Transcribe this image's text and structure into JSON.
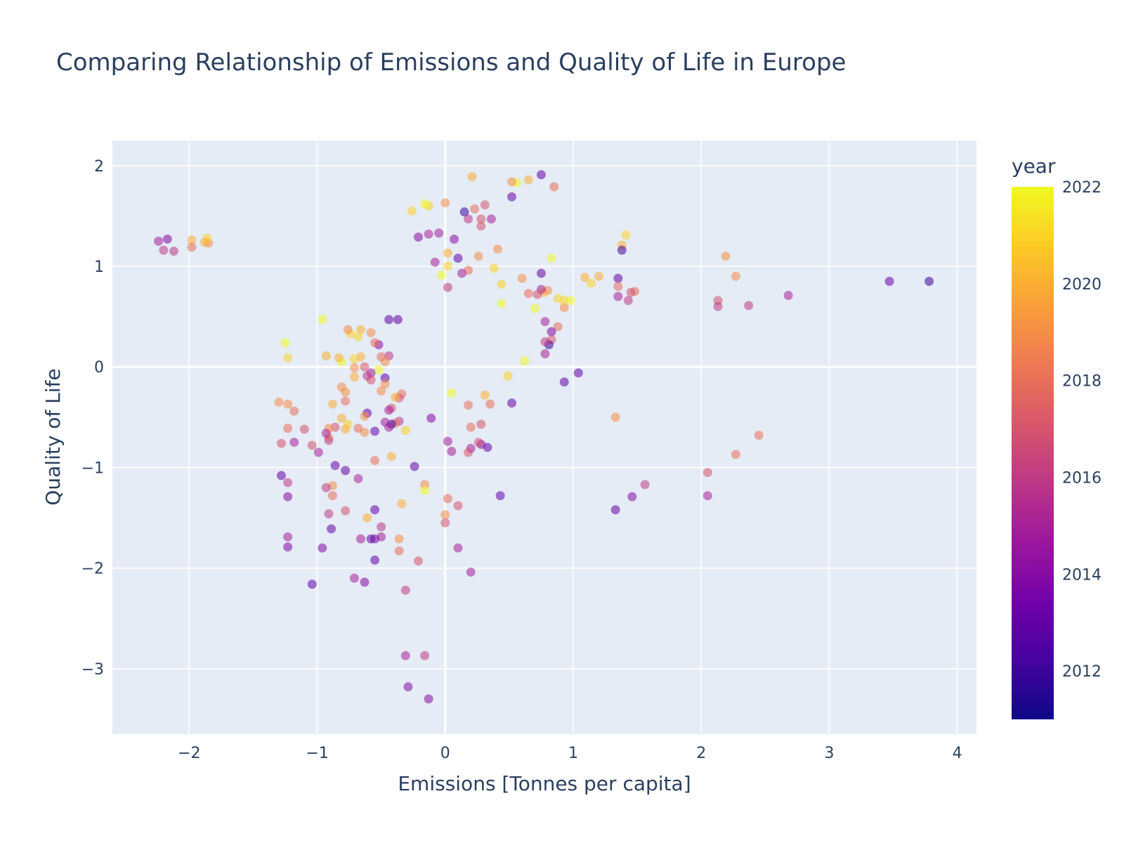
{
  "chart_data": {
    "type": "scatter",
    "title": "Comparing Relationship of Emissions and Quality of Life in Europe",
    "xlabel": "Emissions [Tonnes per capita]",
    "ylabel": "Quality of Life",
    "xlim": [
      -2.6,
      4.15
    ],
    "ylim": [
      -3.65,
      2.25
    ],
    "x_ticks": [
      -2,
      -1,
      0,
      1,
      2,
      3,
      4
    ],
    "y_ticks": [
      -3,
      -2,
      -1,
      0,
      1,
      2
    ],
    "x_tick_labels": [
      "−2",
      "−1",
      "0",
      "1",
      "2",
      "3",
      "4"
    ],
    "y_tick_labels": [
      "−3",
      "−2",
      "−1",
      "0",
      "1",
      "2"
    ],
    "grid": true,
    "plot_background": "#e5ecf6",
    "marker_opacity": 0.55,
    "colorscale": "Plasma",
    "colorscale_colors": [
      "#0d0887",
      "#46039f",
      "#7201a8",
      "#9c179e",
      "#bd3786",
      "#d8576b",
      "#ed7953",
      "#fb9f3a",
      "#fdca26",
      "#f0f921"
    ],
    "colorbar": {
      "title": "year",
      "range": [
        2011,
        2022
      ],
      "ticks": [
        2012,
        2014,
        2016,
        2018,
        2020,
        2022
      ],
      "tick_labels": [
        "2012",
        "2014",
        "2016",
        "2018",
        "2020",
        "2022"
      ]
    },
    "points": [
      {
        "x": 3.78,
        "y": 0.85,
        "year": 2012
      },
      {
        "x": 3.47,
        "y": 0.85,
        "year": 2013
      },
      {
        "x": 2.68,
        "y": 0.71,
        "year": 2015
      },
      {
        "x": 2.45,
        "y": -0.68,
        "year": 2018
      },
      {
        "x": 2.37,
        "y": 0.61,
        "year": 2016
      },
      {
        "x": 2.27,
        "y": 0.9,
        "year": 2019
      },
      {
        "x": 2.27,
        "y": -0.87,
        "year": 2018
      },
      {
        "x": 2.19,
        "y": 1.1,
        "year": 2019
      },
      {
        "x": 2.13,
        "y": 0.66,
        "year": 2017
      },
      {
        "x": 2.13,
        "y": 0.6,
        "year": 2016
      },
      {
        "x": 2.05,
        "y": -1.05,
        "year": 2017
      },
      {
        "x": 2.05,
        "y": -1.28,
        "year": 2015
      },
      {
        "x": 1.56,
        "y": -1.17,
        "year": 2016
      },
      {
        "x": 1.48,
        "y": 0.75,
        "year": 2018
      },
      {
        "x": 1.45,
        "y": 0.74,
        "year": 2017
      },
      {
        "x": 1.46,
        "y": -1.29,
        "year": 2014
      },
      {
        "x": 1.43,
        "y": 0.66,
        "year": 2016
      },
      {
        "x": 1.41,
        "y": 1.31,
        "year": 2021
      },
      {
        "x": 1.38,
        "y": 1.21,
        "year": 2020
      },
      {
        "x": 1.38,
        "y": 1.16,
        "year": 2012
      },
      {
        "x": 1.35,
        "y": 0.88,
        "year": 2013
      },
      {
        "x": 1.35,
        "y": 0.8,
        "year": 2018
      },
      {
        "x": 1.35,
        "y": 0.7,
        "year": 2015
      },
      {
        "x": 1.33,
        "y": -0.5,
        "year": 2019
      },
      {
        "x": 1.33,
        "y": -1.42,
        "year": 2013
      },
      {
        "x": 1.2,
        "y": 0.9,
        "year": 2020
      },
      {
        "x": 1.14,
        "y": 0.83,
        "year": 2021
      },
      {
        "x": 1.09,
        "y": 0.89,
        "year": 2020
      },
      {
        "x": 1.04,
        "y": -0.06,
        "year": 2013
      },
      {
        "x": 0.98,
        "y": 0.66,
        "year": 2022
      },
      {
        "x": 0.93,
        "y": 0.59,
        "year": 2019
      },
      {
        "x": 0.93,
        "y": 0.66,
        "year": 2021
      },
      {
        "x": 0.93,
        "y": -0.15,
        "year": 2013
      },
      {
        "x": 0.88,
        "y": 0.68,
        "year": 2021
      },
      {
        "x": 0.88,
        "y": 0.4,
        "year": 2018
      },
      {
        "x": 0.85,
        "y": 1.79,
        "year": 2018
      },
      {
        "x": 0.83,
        "y": 1.08,
        "year": 2022
      },
      {
        "x": 0.83,
        "y": 0.35,
        "year": 2014
      },
      {
        "x": 0.83,
        "y": 0.27,
        "year": 2017
      },
      {
        "x": 0.81,
        "y": 0.22,
        "year": 2012
      },
      {
        "x": 0.8,
        "y": 0.76,
        "year": 2019
      },
      {
        "x": 0.78,
        "y": 0.45,
        "year": 2015
      },
      {
        "x": 0.78,
        "y": 0.25,
        "year": 2016
      },
      {
        "x": 0.78,
        "y": 0.13,
        "year": 2015
      },
      {
        "x": 0.77,
        "y": 0.74,
        "year": 2020
      },
      {
        "x": 0.75,
        "y": 1.91,
        "year": 2013
      },
      {
        "x": 0.75,
        "y": 0.93,
        "year": 2013
      },
      {
        "x": 0.75,
        "y": 0.77,
        "year": 2015
      },
      {
        "x": 0.72,
        "y": 0.72,
        "year": 2017
      },
      {
        "x": 0.7,
        "y": 0.58,
        "year": 2022
      },
      {
        "x": 0.65,
        "y": 1.86,
        "year": 2020
      },
      {
        "x": 0.65,
        "y": 0.73,
        "year": 2018
      },
      {
        "x": 0.62,
        "y": 0.06,
        "year": 2022
      },
      {
        "x": 0.6,
        "y": 0.88,
        "year": 2019
      },
      {
        "x": 0.56,
        "y": 1.83,
        "year": 2022
      },
      {
        "x": 0.52,
        "y": 1.84,
        "year": 2019
      },
      {
        "x": 0.52,
        "y": 1.69,
        "year": 2013
      },
      {
        "x": 0.52,
        "y": -0.36,
        "year": 2013
      },
      {
        "x": 0.49,
        "y": -0.09,
        "year": 2021
      },
      {
        "x": 0.44,
        "y": 0.82,
        "year": 2021
      },
      {
        "x": 0.44,
        "y": 0.63,
        "year": 2022
      },
      {
        "x": 0.43,
        "y": -1.28,
        "year": 2013
      },
      {
        "x": 0.41,
        "y": 1.17,
        "year": 2019
      },
      {
        "x": 0.38,
        "y": 0.98,
        "year": 2021
      },
      {
        "x": 0.36,
        "y": 1.47,
        "year": 2015
      },
      {
        "x": 0.35,
        "y": -0.37,
        "year": 2018
      },
      {
        "x": 0.33,
        "y": -0.8,
        "year": 2013
      },
      {
        "x": 0.31,
        "y": 1.61,
        "year": 2017
      },
      {
        "x": 0.31,
        "y": -0.28,
        "year": 2020
      },
      {
        "x": 0.28,
        "y": 1.47,
        "year": 2017
      },
      {
        "x": 0.28,
        "y": 1.4,
        "year": 2017
      },
      {
        "x": 0.28,
        "y": -0.57,
        "year": 2017
      },
      {
        "x": 0.28,
        "y": -0.77,
        "year": 2014
      },
      {
        "x": 0.26,
        "y": 1.1,
        "year": 2019
      },
      {
        "x": 0.26,
        "y": -0.75,
        "year": 2017
      },
      {
        "x": 0.23,
        "y": 1.57,
        "year": 2018
      },
      {
        "x": 0.21,
        "y": 1.89,
        "year": 2020
      },
      {
        "x": 0.2,
        "y": -0.6,
        "year": 2018
      },
      {
        "x": 0.2,
        "y": -0.81,
        "year": 2015
      },
      {
        "x": 0.2,
        "y": -2.04,
        "year": 2015
      },
      {
        "x": 0.18,
        "y": 1.47,
        "year": 2016
      },
      {
        "x": 0.18,
        "y": 0.96,
        "year": 2018
      },
      {
        "x": 0.18,
        "y": -0.38,
        "year": 2018
      },
      {
        "x": 0.18,
        "y": -0.85,
        "year": 2017
      },
      {
        "x": 0.15,
        "y": 1.54,
        "year": 2012
      },
      {
        "x": 0.13,
        "y": 0.93,
        "year": 2015
      },
      {
        "x": 0.1,
        "y": 1.08,
        "year": 2013
      },
      {
        "x": 0.1,
        "y": -1.38,
        "year": 2017
      },
      {
        "x": 0.1,
        "y": -1.8,
        "year": 2015
      },
      {
        "x": 0.07,
        "y": 1.27,
        "year": 2014
      },
      {
        "x": 0.05,
        "y": -0.26,
        "year": 2022
      },
      {
        "x": 0.05,
        "y": -0.84,
        "year": 2015
      },
      {
        "x": 0.02,
        "y": 1.13,
        "year": 2020
      },
      {
        "x": 0.02,
        "y": 1.0,
        "year": 2021
      },
      {
        "x": 0.02,
        "y": 0.79,
        "year": 2016
      },
      {
        "x": 0.02,
        "y": -0.74,
        "year": 2015
      },
      {
        "x": 0.02,
        "y": -1.31,
        "year": 2018
      },
      {
        "x": 0.0,
        "y": 1.63,
        "year": 2019
      },
      {
        "x": 0.0,
        "y": -1.47,
        "year": 2019
      },
      {
        "x": 0.0,
        "y": -1.55,
        "year": 2017
      },
      {
        "x": -0.03,
        "y": 0.91,
        "year": 2022
      },
      {
        "x": -0.05,
        "y": 1.33,
        "year": 2015
      },
      {
        "x": -0.08,
        "y": 1.04,
        "year": 2015
      },
      {
        "x": -0.11,
        "y": -0.51,
        "year": 2014
      },
      {
        "x": -0.13,
        "y": 1.6,
        "year": 2021
      },
      {
        "x": -0.13,
        "y": 1.32,
        "year": 2015
      },
      {
        "x": -0.13,
        "y": -3.3,
        "year": 2014
      },
      {
        "x": -0.16,
        "y": 1.62,
        "year": 2022
      },
      {
        "x": -0.16,
        "y": -1.17,
        "year": 2019
      },
      {
        "x": -0.16,
        "y": -1.23,
        "year": 2022
      },
      {
        "x": -0.16,
        "y": -2.87,
        "year": 2016
      },
      {
        "x": -0.21,
        "y": 1.29,
        "year": 2014
      },
      {
        "x": -0.21,
        "y": -1.93,
        "year": 2017
      },
      {
        "x": -0.24,
        "y": -0.99,
        "year": 2013
      },
      {
        "x": -0.26,
        "y": 1.55,
        "year": 2021
      },
      {
        "x": -0.29,
        "y": -3.18,
        "year": 2014
      },
      {
        "x": -0.31,
        "y": -0.63,
        "year": 2021
      },
      {
        "x": -0.31,
        "y": -2.22,
        "year": 2016
      },
      {
        "x": -0.31,
        "y": -2.87,
        "year": 2015
      },
      {
        "x": -0.34,
        "y": -0.27,
        "year": 2018
      },
      {
        "x": -0.34,
        "y": -1.36,
        "year": 2020
      },
      {
        "x": -0.36,
        "y": -0.31,
        "year": 2017
      },
      {
        "x": -0.36,
        "y": -0.54,
        "year": 2016
      },
      {
        "x": -0.36,
        "y": -1.71,
        "year": 2019
      },
      {
        "x": -0.36,
        "y": -1.83,
        "year": 2018
      },
      {
        "x": -0.37,
        "y": 0.47,
        "year": 2013
      },
      {
        "x": -0.39,
        "y": -0.3,
        "year": 2020
      },
      {
        "x": -0.39,
        "y": -0.56,
        "year": 2018
      },
      {
        "x": -0.42,
        "y": -0.41,
        "year": 2017
      },
      {
        "x": -0.42,
        "y": -0.57,
        "year": 2012
      },
      {
        "x": -0.42,
        "y": -0.89,
        "year": 2020
      },
      {
        "x": -0.44,
        "y": 0.47,
        "year": 2013
      },
      {
        "x": -0.44,
        "y": 0.11,
        "year": 2016
      },
      {
        "x": -0.44,
        "y": -0.43,
        "year": 2015
      },
      {
        "x": -0.44,
        "y": -0.6,
        "year": 2015
      },
      {
        "x": -0.47,
        "y": 0.05,
        "year": 2019
      },
      {
        "x": -0.47,
        "y": -0.11,
        "year": 2013
      },
      {
        "x": -0.47,
        "y": -0.17,
        "year": 2019
      },
      {
        "x": -0.47,
        "y": -0.55,
        "year": 2015
      },
      {
        "x": -0.5,
        "y": 0.1,
        "year": 2018
      },
      {
        "x": -0.5,
        "y": -0.24,
        "year": 2019
      },
      {
        "x": -0.5,
        "y": -1.59,
        "year": 2016
      },
      {
        "x": -0.5,
        "y": -1.69,
        "year": 2015
      },
      {
        "x": -0.52,
        "y": 0.22,
        "year": 2014
      },
      {
        "x": -0.52,
        "y": -0.03,
        "year": 2022
      },
      {
        "x": -0.55,
        "y": 0.24,
        "year": 2018
      },
      {
        "x": -0.55,
        "y": -0.64,
        "year": 2013
      },
      {
        "x": -0.55,
        "y": -0.93,
        "year": 2018
      },
      {
        "x": -0.55,
        "y": -1.42,
        "year": 2013
      },
      {
        "x": -0.55,
        "y": -1.71,
        "year": 2014
      },
      {
        "x": -0.55,
        "y": -1.92,
        "year": 2013
      },
      {
        "x": -0.58,
        "y": 0.34,
        "year": 2019
      },
      {
        "x": -0.58,
        "y": -0.06,
        "year": 2015
      },
      {
        "x": -0.58,
        "y": -0.13,
        "year": 2017
      },
      {
        "x": -0.58,
        "y": -1.71,
        "year": 2013
      },
      {
        "x": -0.61,
        "y": -0.09,
        "year": 2016
      },
      {
        "x": -0.61,
        "y": -0.46,
        "year": 2013
      },
      {
        "x": -0.61,
        "y": -1.5,
        "year": 2020
      },
      {
        "x": -0.63,
        "y": 0.0,
        "year": 2017
      },
      {
        "x": -0.63,
        "y": -0.49,
        "year": 2019
      },
      {
        "x": -0.63,
        "y": -0.65,
        "year": 2019
      },
      {
        "x": -0.63,
        "y": -2.14,
        "year": 2014
      },
      {
        "x": -0.66,
        "y": 0.37,
        "year": 2020
      },
      {
        "x": -0.66,
        "y": 0.1,
        "year": 2020
      },
      {
        "x": -0.66,
        "y": -1.71,
        "year": 2015
      },
      {
        "x": -0.68,
        "y": 0.3,
        "year": 2021
      },
      {
        "x": -0.68,
        "y": -0.61,
        "year": 2018
      },
      {
        "x": -0.68,
        "y": -1.11,
        "year": 2015
      },
      {
        "x": -0.71,
        "y": 0.08,
        "year": 2021
      },
      {
        "x": -0.71,
        "y": -0.01,
        "year": 2019
      },
      {
        "x": -0.71,
        "y": -0.1,
        "year": 2020
      },
      {
        "x": -0.71,
        "y": -2.1,
        "year": 2015
      },
      {
        "x": -0.74,
        "y": 0.33,
        "year": 2021
      },
      {
        "x": -0.76,
        "y": 0.37,
        "year": 2019
      },
      {
        "x": -0.76,
        "y": -0.57,
        "year": 2021
      },
      {
        "x": -0.78,
        "y": -0.25,
        "year": 2019
      },
      {
        "x": -0.78,
        "y": -0.34,
        "year": 2018
      },
      {
        "x": -0.78,
        "y": -0.62,
        "year": 2020
      },
      {
        "x": -0.78,
        "y": -1.03,
        "year": 2013
      },
      {
        "x": -0.78,
        "y": -1.43,
        "year": 2017
      },
      {
        "x": -0.81,
        "y": 0.05,
        "year": 2022
      },
      {
        "x": -0.81,
        "y": -0.2,
        "year": 2019
      },
      {
        "x": -0.81,
        "y": -0.51,
        "year": 2020
      },
      {
        "x": -0.83,
        "y": 0.09,
        "year": 2020
      },
      {
        "x": -0.86,
        "y": -0.6,
        "year": 2017
      },
      {
        "x": -0.86,
        "y": -0.98,
        "year": 2013
      },
      {
        "x": -0.88,
        "y": -0.37,
        "year": 2020
      },
      {
        "x": -0.88,
        "y": -1.18,
        "year": 2019
      },
      {
        "x": -0.88,
        "y": -1.28,
        "year": 2018
      },
      {
        "x": -0.89,
        "y": -1.61,
        "year": 2013
      },
      {
        "x": -0.91,
        "y": -0.61,
        "year": 2019
      },
      {
        "x": -0.91,
        "y": -0.7,
        "year": 2019
      },
      {
        "x": -0.91,
        "y": -0.73,
        "year": 2016
      },
      {
        "x": -0.91,
        "y": -1.46,
        "year": 2016
      },
      {
        "x": -0.93,
        "y": 0.11,
        "year": 2020
      },
      {
        "x": -0.93,
        "y": -0.66,
        "year": 2015
      },
      {
        "x": -0.93,
        "y": -1.2,
        "year": 2016
      },
      {
        "x": -0.96,
        "y": 0.47,
        "year": 2022
      },
      {
        "x": -0.96,
        "y": -1.8,
        "year": 2014
      },
      {
        "x": -0.99,
        "y": -0.85,
        "year": 2015
      },
      {
        "x": -1.04,
        "y": -0.78,
        "year": 2017
      },
      {
        "x": -1.04,
        "y": -2.16,
        "year": 2013
      },
      {
        "x": -1.1,
        "y": -0.62,
        "year": 2017
      },
      {
        "x": -1.18,
        "y": -0.44,
        "year": 2018
      },
      {
        "x": -1.18,
        "y": -0.75,
        "year": 2015
      },
      {
        "x": -1.23,
        "y": 0.09,
        "year": 2021
      },
      {
        "x": -1.23,
        "y": -0.37,
        "year": 2019
      },
      {
        "x": -1.23,
        "y": -0.61,
        "year": 2018
      },
      {
        "x": -1.23,
        "y": -1.15,
        "year": 2016
      },
      {
        "x": -1.23,
        "y": -1.29,
        "year": 2014
      },
      {
        "x": -1.23,
        "y": -1.69,
        "year": 2015
      },
      {
        "x": -1.23,
        "y": -1.79,
        "year": 2014
      },
      {
        "x": -1.25,
        "y": 0.24,
        "year": 2022
      },
      {
        "x": -1.28,
        "y": -0.76,
        "year": 2017
      },
      {
        "x": -1.28,
        "y": -1.08,
        "year": 2013
      },
      {
        "x": -1.3,
        "y": -0.35,
        "year": 2019
      },
      {
        "x": -1.85,
        "y": 1.23,
        "year": 2019
      },
      {
        "x": -1.86,
        "y": 1.28,
        "year": 2021
      },
      {
        "x": -1.88,
        "y": 1.24,
        "year": 2020
      },
      {
        "x": -1.98,
        "y": 1.26,
        "year": 2020
      },
      {
        "x": -1.98,
        "y": 1.19,
        "year": 2018
      },
      {
        "x": -2.12,
        "y": 1.15,
        "year": 2016
      },
      {
        "x": -2.17,
        "y": 1.27,
        "year": 2014
      },
      {
        "x": -2.2,
        "y": 1.16,
        "year": 2016
      },
      {
        "x": -2.24,
        "y": 1.25,
        "year": 2015
      }
    ]
  }
}
